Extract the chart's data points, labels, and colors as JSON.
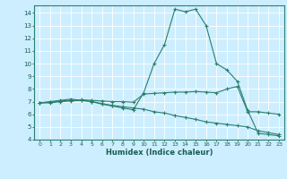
{
  "xlabel": "Humidex (Indice chaleur)",
  "background_color": "#cceeff",
  "grid_color": "#ffffff",
  "line_color": "#2a7f6f",
  "xlim": [
    -0.5,
    23.5
  ],
  "ylim": [
    4,
    14.6
  ],
  "yticks": [
    4,
    5,
    6,
    7,
    8,
    9,
    10,
    11,
    12,
    13,
    14
  ],
  "xticks": [
    0,
    1,
    2,
    3,
    4,
    5,
    6,
    7,
    8,
    9,
    10,
    11,
    12,
    13,
    14,
    15,
    16,
    17,
    18,
    19,
    20,
    21,
    22,
    23
  ],
  "line1_x": [
    0,
    1,
    2,
    3,
    4,
    5,
    6,
    7,
    8,
    9,
    10,
    11,
    12,
    13,
    14,
    15,
    16,
    17,
    18,
    19,
    20,
    21,
    22,
    23
  ],
  "line1_y": [
    6.9,
    7.0,
    7.1,
    7.2,
    7.1,
    7.0,
    6.8,
    6.65,
    6.5,
    6.35,
    7.7,
    10.0,
    11.5,
    14.3,
    14.1,
    14.3,
    13.0,
    10.0,
    9.5,
    8.6,
    6.3,
    4.5,
    4.4,
    4.3
  ],
  "line2_x": [
    0,
    1,
    2,
    3,
    4,
    5,
    6,
    7,
    8,
    9,
    10,
    11,
    12,
    13,
    14,
    15,
    16,
    17,
    18,
    19,
    20,
    21,
    22,
    23
  ],
  "line2_y": [
    6.9,
    6.95,
    7.05,
    7.1,
    7.15,
    7.1,
    7.05,
    7.0,
    7.0,
    6.95,
    7.6,
    7.65,
    7.7,
    7.75,
    7.75,
    7.8,
    7.75,
    7.7,
    8.0,
    8.2,
    6.2,
    6.2,
    6.1,
    6.0
  ],
  "line3_x": [
    0,
    1,
    2,
    3,
    4,
    5,
    6,
    7,
    8,
    9,
    10,
    11,
    12,
    13,
    14,
    15,
    16,
    17,
    18,
    19,
    20,
    21,
    22,
    23
  ],
  "line3_y": [
    6.9,
    6.9,
    7.0,
    7.05,
    7.1,
    7.0,
    6.85,
    6.7,
    6.6,
    6.5,
    6.4,
    6.2,
    6.1,
    5.9,
    5.75,
    5.6,
    5.4,
    5.3,
    5.2,
    5.1,
    5.0,
    4.7,
    4.55,
    4.4
  ]
}
